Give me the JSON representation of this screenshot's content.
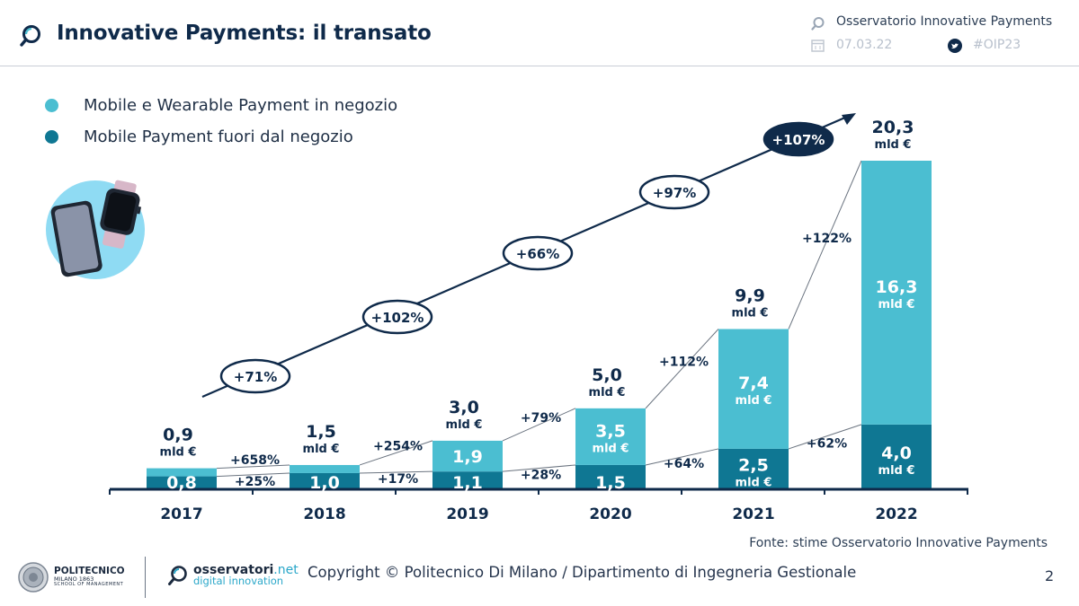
{
  "header": {
    "title": "Innovative Payments: il transato",
    "org": "Osservatorio Innovative Payments",
    "date": "07.03.22",
    "hashtag": "#OIP23"
  },
  "legend": {
    "items": [
      {
        "label": "Mobile e Wearable Payment in negozio",
        "color": "#4bbed1"
      },
      {
        "label": "Mobile Payment fuori dal negozio",
        "color": "#0f7793"
      }
    ]
  },
  "chart_data": {
    "type": "bar",
    "stacked": true,
    "categories": [
      "2017",
      "2018",
      "2019",
      "2020",
      "2021",
      "2022"
    ],
    "series": [
      {
        "name": "Mobile Payment fuori dal negozio",
        "color": "#0f7793",
        "values": [
          0.8,
          1.0,
          1.1,
          1.5,
          2.5,
          4.0
        ],
        "labels": [
          "0,8",
          "1,0",
          "1,1",
          "1,5",
          "2,5",
          "4,0"
        ],
        "units": [
          "",
          "",
          "",
          "",
          "mld €",
          "mld €"
        ]
      },
      {
        "name": "Mobile e Wearable Payment in negozio",
        "color": "#4bbed1",
        "values": [
          0.1,
          0.5,
          1.9,
          3.5,
          7.4,
          16.3
        ],
        "labels": [
          "",
          "",
          "1,9",
          "3,5",
          "7,4",
          "16,3"
        ],
        "units": [
          "",
          "",
          "",
          "mld €",
          "mld €",
          "mld €"
        ]
      }
    ],
    "totals": [
      0.9,
      1.5,
      3.0,
      5.0,
      9.9,
      20.3
    ],
    "total_labels": [
      "0,9",
      "1,5",
      "3,0",
      "5,0",
      "9,9",
      "20,3"
    ],
    "unit": "mld €",
    "growth_total": [
      "+71%",
      "+102%",
      "+66%",
      "+97%",
      "+107%"
    ],
    "growth_instore": [
      "+658%",
      "+254%",
      "+79%",
      "+112%",
      "+122%"
    ],
    "growth_online": [
      "+25%",
      "+17%",
      "+28%",
      "+64%",
      "+62%"
    ],
    "ylim": [
      0,
      20.3
    ]
  },
  "colors": {
    "navy": "#0f2a4a",
    "accent": "#4bbed1",
    "dark_teal": "#0f7793"
  },
  "footer": {
    "source": "Fonte: stime Osservatorio Innovative Payments",
    "copyright": "Copyright © Politecnico Di Milano / Dipartimento di Ingegneria Gestionale",
    "page": "2",
    "polimi_name": "POLITECNICO",
    "polimi_city": "MILANO 1863",
    "polimi_school": "SCHOOL OF MANAGEMENT",
    "oss_name": "osservatori",
    "oss_tld": ".net",
    "oss_sub": "digital innovation"
  }
}
